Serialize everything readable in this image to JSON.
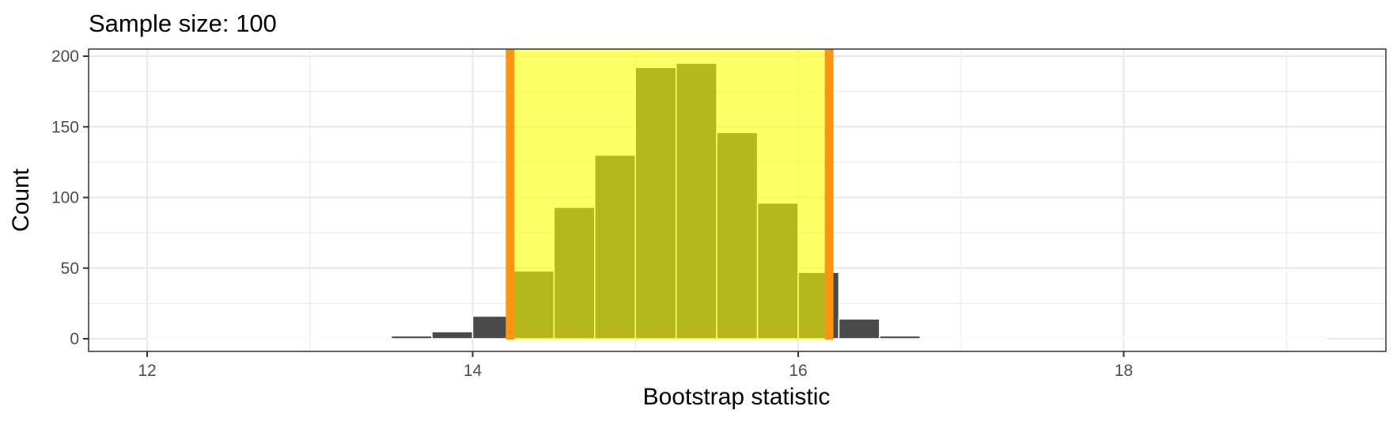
{
  "chart_data": {
    "type": "bar",
    "subtype": "histogram",
    "title": "Sample size: 100",
    "xlabel": "Bootstrap statistic",
    "ylabel": "Count",
    "xlim": [
      11.66,
      19.6
    ],
    "ylim": [
      -9,
      205
    ],
    "x_ticks": [
      12,
      14,
      16,
      18
    ],
    "y_ticks": [
      0,
      50,
      100,
      150,
      200
    ],
    "grid": true,
    "bin_width": 0.25,
    "bins": [
      {
        "start": 13.5,
        "end": 13.75,
        "count": 2
      },
      {
        "start": 13.75,
        "end": 14.0,
        "count": 5
      },
      {
        "start": 14.0,
        "end": 14.25,
        "count": 16
      },
      {
        "start": 14.25,
        "end": 14.5,
        "count": 48
      },
      {
        "start": 14.5,
        "end": 14.75,
        "count": 93
      },
      {
        "start": 14.75,
        "end": 15.0,
        "count": 130
      },
      {
        "start": 15.0,
        "end": 15.25,
        "count": 192
      },
      {
        "start": 15.25,
        "end": 15.5,
        "count": 195
      },
      {
        "start": 15.5,
        "end": 15.75,
        "count": 146
      },
      {
        "start": 15.75,
        "end": 16.0,
        "count": 96
      },
      {
        "start": 16.0,
        "end": 16.25,
        "count": 47
      },
      {
        "start": 16.25,
        "end": 16.5,
        "count": 14
      },
      {
        "start": 16.5,
        "end": 16.75,
        "count": 2
      }
    ],
    "empty_bin_range": [
      12.0,
      19.25
    ],
    "confidence_interval": {
      "lower": 14.23,
      "upper": 16.19
    },
    "colors": {
      "bar_fill": "#4a4a4a",
      "bar_outline": "#ffffff",
      "ci_shade": "#ffff00",
      "ci_shade_opacity": 0.6,
      "ci_line": "#ff9410",
      "grid": "#ebebeb",
      "panel_border": "#333333"
    }
  },
  "labels": {
    "title": "Sample size: 100",
    "xlabel": "Bootstrap statistic",
    "ylabel": "Count",
    "x_tick_labels": [
      "12",
      "14",
      "16",
      "18"
    ],
    "y_tick_labels": [
      "0",
      "50",
      "100",
      "150",
      "200"
    ]
  }
}
